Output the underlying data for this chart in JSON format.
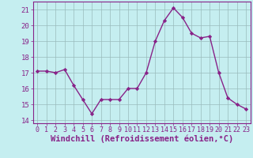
{
  "x": [
    0,
    1,
    2,
    3,
    4,
    5,
    6,
    7,
    8,
    9,
    10,
    11,
    12,
    13,
    14,
    15,
    16,
    17,
    18,
    19,
    20,
    21,
    22,
    23
  ],
  "y": [
    17.1,
    17.1,
    17.0,
    17.2,
    16.2,
    15.3,
    14.4,
    15.3,
    15.3,
    15.3,
    16.0,
    16.0,
    17.0,
    19.0,
    20.3,
    21.1,
    20.5,
    19.5,
    19.2,
    19.3,
    17.0,
    15.4,
    15.0,
    14.7
  ],
  "line_color": "#882288",
  "marker": "D",
  "markersize": 2.2,
  "linewidth": 1.0,
  "bg_color": "#C5EEF0",
  "grid_color": "#99BBBB",
  "xlabel": "Windchill (Refroidissement éolien,°C)",
  "xlabel_fontsize": 7.5,
  "tick_fontsize": 6.5,
  "ylim": [
    13.8,
    21.5
  ],
  "xlim": [
    -0.5,
    23.5
  ],
  "yticks": [
    14,
    15,
    16,
    17,
    18,
    19,
    20,
    21
  ],
  "xticks": [
    0,
    1,
    2,
    3,
    4,
    5,
    6,
    7,
    8,
    9,
    10,
    11,
    12,
    13,
    14,
    15,
    16,
    17,
    18,
    19,
    20,
    21,
    22,
    23
  ]
}
